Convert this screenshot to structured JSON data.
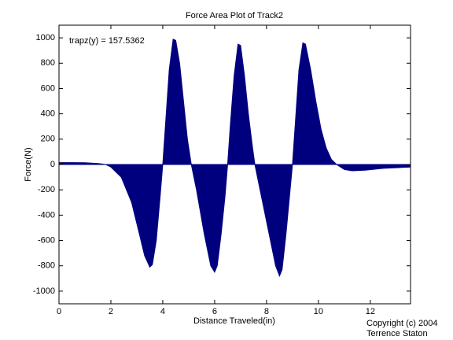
{
  "title": "Force Area Plot of Track2",
  "copyright": [
    "Copyright (c) 2004",
    "Terrence Staton"
  ],
  "chart_data": {
    "type": "area",
    "title": "Force Area Plot of Track2",
    "x_label": "Distance Traveled(in)",
    "y_label": "Force(N)",
    "annotation": "trapz(y) = 157.5362",
    "color": "#00007f",
    "x": [
      0,
      0.5,
      1,
      1.5,
      1.8,
      2,
      2.4,
      2.8,
      3.1,
      3.3,
      3.5,
      3.6,
      3.75,
      3.9,
      4.0,
      4.1,
      4.25,
      4.4,
      4.5,
      4.65,
      4.8,
      4.95,
      5.1,
      5.3,
      5.6,
      5.85,
      6.0,
      6.1,
      6.25,
      6.4,
      6.5,
      6.6,
      6.75,
      6.9,
      7.0,
      7.15,
      7.3,
      7.45,
      7.55,
      7.8,
      8.1,
      8.35,
      8.5,
      8.6,
      8.75,
      8.9,
      9.0,
      9.1,
      9.25,
      9.4,
      9.5,
      9.7,
      9.9,
      10.1,
      10.3,
      10.5,
      10.7,
      11,
      11.3,
      11.8,
      12.5,
      13.55
    ],
    "values": [
      15,
      15,
      14,
      8,
      0,
      -20,
      -100,
      -300,
      -550,
      -720,
      -810,
      -790,
      -600,
      -250,
      0,
      300,
      750,
      990,
      980,
      800,
      500,
      200,
      0,
      -200,
      -550,
      -800,
      -850,
      -800,
      -550,
      -250,
      0,
      300,
      700,
      950,
      940,
      700,
      400,
      150,
      0,
      -250,
      -550,
      -800,
      -880,
      -830,
      -550,
      -220,
      0,
      300,
      750,
      960,
      950,
      750,
      500,
      280,
      130,
      40,
      0,
      -40,
      -50,
      -45,
      -30,
      -20
    ],
    "xlim": [
      0,
      13.55
    ],
    "ylim": [
      -1100,
      1100
    ],
    "xticks": [
      0,
      2,
      4,
      6,
      8,
      10,
      12
    ],
    "yticks": [
      -1000,
      -800,
      -600,
      -400,
      -200,
      0,
      200,
      400,
      600,
      800,
      1000
    ]
  }
}
